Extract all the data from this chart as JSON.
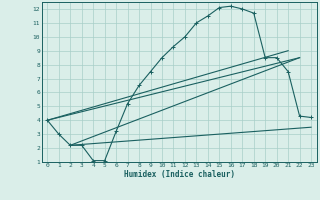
{
  "xlabel": "Humidex (Indice chaleur)",
  "background_color": "#daeee9",
  "grid_color": "#a8cfc8",
  "line_color": "#1a6060",
  "xlim": [
    -0.5,
    23.5
  ],
  "ylim": [
    1,
    12.5
  ],
  "xticks": [
    0,
    1,
    2,
    3,
    4,
    5,
    6,
    7,
    8,
    9,
    10,
    11,
    12,
    13,
    14,
    15,
    16,
    17,
    18,
    19,
    20,
    21,
    22,
    23
  ],
  "yticks": [
    1,
    2,
    3,
    4,
    5,
    6,
    7,
    8,
    9,
    10,
    11,
    12
  ],
  "curve1_x": [
    0,
    1,
    2,
    3,
    4,
    5,
    6,
    7,
    8,
    9,
    10,
    11,
    12,
    13,
    14,
    15,
    16,
    17,
    18,
    19,
    20,
    21,
    22,
    23
  ],
  "curve1_y": [
    4.0,
    3.0,
    2.2,
    2.2,
    1.1,
    1.1,
    3.2,
    5.2,
    6.5,
    7.5,
    8.5,
    9.3,
    10.0,
    11.0,
    11.5,
    12.1,
    12.2,
    12.0,
    11.7,
    8.5,
    8.5,
    7.5,
    4.3,
    4.2
  ],
  "line1_x": [
    0,
    21
  ],
  "line1_y": [
    4.0,
    9.0
  ],
  "line2_x": [
    0,
    22
  ],
  "line2_y": [
    4.0,
    8.5
  ],
  "line3_x": [
    2,
    22
  ],
  "line3_y": [
    2.2,
    8.5
  ],
  "line4_x": [
    2,
    23
  ],
  "line4_y": [
    2.2,
    3.5
  ]
}
